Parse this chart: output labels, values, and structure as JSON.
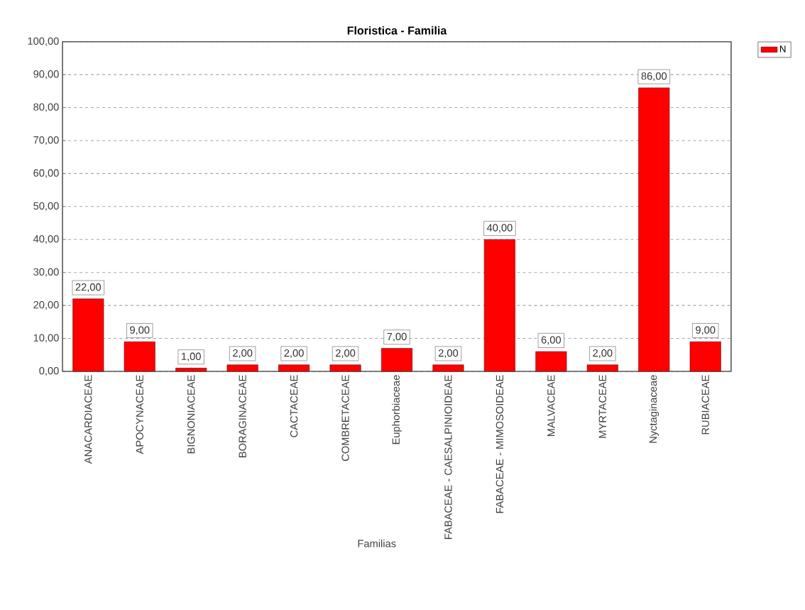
{
  "chart_data": {
    "type": "bar",
    "title": "Floristica - Familia",
    "xlabel": "Familias",
    "categories": [
      "ANACARDIACEAE",
      "APOCYNACEAE",
      "BIGNONIACEAE",
      "BORAGINACEAE",
      "CACTACEAE",
      "COMBRETACEAE",
      "Euphorbiaceae",
      "FABACEAE - CAESALPINIOIDEAE",
      "FABACEAE - MIMOSOIDEAE",
      "MALVACEAE",
      "MYRTACEAE",
      "Nyctaginaceae",
      "RUBIACEAE"
    ],
    "series": [
      {
        "name": "N",
        "color": "#ff0000",
        "values": [
          22,
          9,
          1,
          2,
          2,
          2,
          7,
          2,
          40,
          6,
          2,
          86,
          9
        ],
        "value_labels": [
          "22,00",
          "9,00",
          "1,00",
          "2,00",
          "2,00",
          "2,00",
          "7,00",
          "2,00",
          "40,00",
          "6,00",
          "2,00",
          "86,00",
          "9,00"
        ]
      }
    ],
    "ylim": [
      0,
      100
    ],
    "yticks": [
      {
        "value": 0,
        "label": "0,00"
      },
      {
        "value": 10,
        "label": "10,00"
      },
      {
        "value": 20,
        "label": "20,00"
      },
      {
        "value": 30,
        "label": "30,00"
      },
      {
        "value": 40,
        "label": "40,00"
      },
      {
        "value": 50,
        "label": "50,00"
      },
      {
        "value": 60,
        "label": "60,00"
      },
      {
        "value": 70,
        "label": "70,00"
      },
      {
        "value": 80,
        "label": "80,00"
      },
      {
        "value": 90,
        "label": "90,00"
      },
      {
        "value": 100,
        "label": "100,00"
      }
    ],
    "grid": "y",
    "legend": "top right"
  }
}
